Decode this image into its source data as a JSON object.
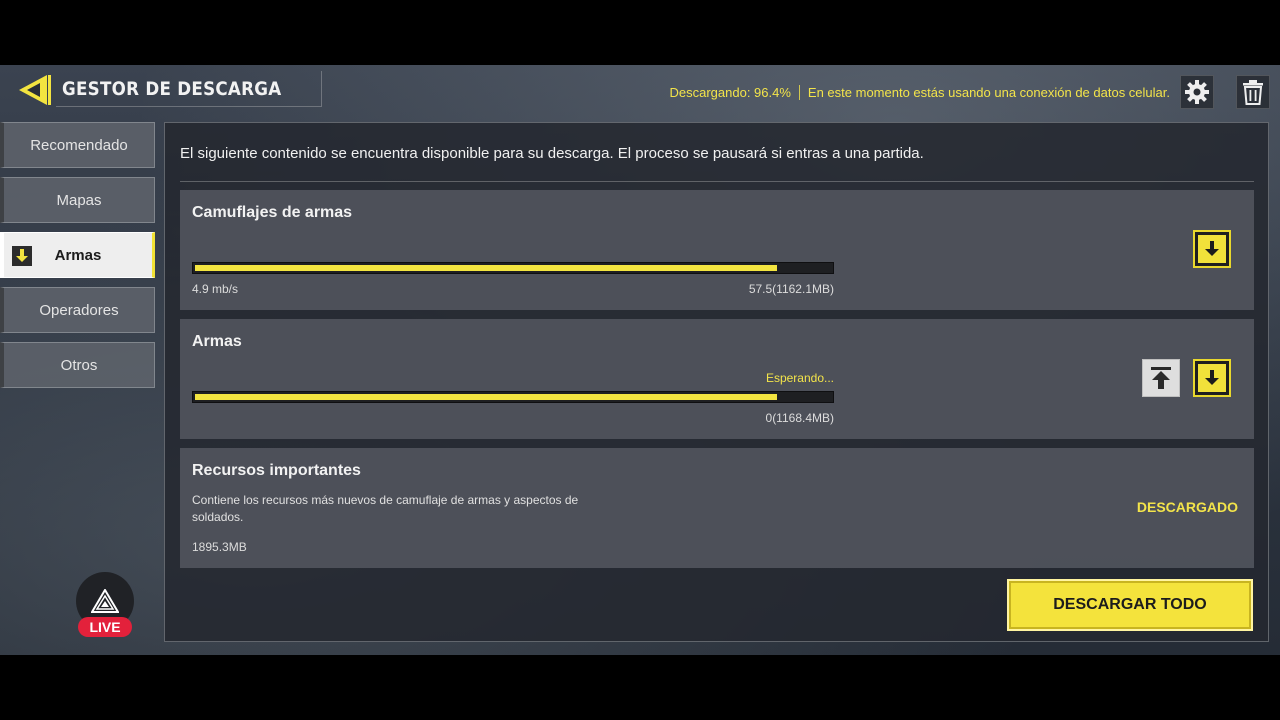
{
  "header": {
    "title": "GESTOR DE DESCARGA",
    "download_status": "Descargando: 96.4%",
    "connection_notice": "En este momento estás usando una conexión de datos celular."
  },
  "sidebar": {
    "items": [
      {
        "label": "Recomendado",
        "active": false
      },
      {
        "label": "Mapas",
        "active": false
      },
      {
        "label": "Armas",
        "active": true
      },
      {
        "label": "Operadores",
        "active": false
      },
      {
        "label": "Otros",
        "active": false
      }
    ]
  },
  "main": {
    "info": "El siguiente contenido se encuentra disponible para su descarga. El proceso se pausará si entras a una partida.",
    "items": [
      {
        "title": "Camuflajes de armas",
        "progress": 0.915,
        "speed": "4.9 mb/s",
        "size": "57.5(1162.1MB)"
      },
      {
        "title": "Armas",
        "progress": 0.915,
        "status": "Esperando...",
        "size": "0(1168.4MB)"
      },
      {
        "title": "Recursos importantes",
        "description": "Contiene los recursos más nuevos de camuflaje de armas y aspectos de soldados.",
        "size": "1895.3MB",
        "status": "DESCARGADO"
      }
    ],
    "download_all_label": "DESCARGAR TODO"
  },
  "live_badge": "LIVE",
  "colors": {
    "accent": "#f3e440",
    "live": "#e3213b"
  },
  "icons": [
    "back-arrow-icon",
    "gear-icon",
    "trash-icon",
    "download-icon",
    "move-to-top-icon",
    "stream-logo-icon"
  ]
}
